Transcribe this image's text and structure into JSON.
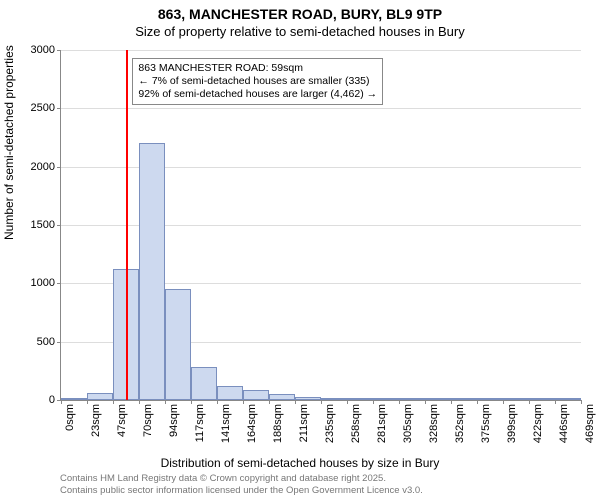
{
  "title_main": "863, MANCHESTER ROAD, BURY, BL9 9TP",
  "title_sub": "Size of property relative to semi-detached houses in Bury",
  "y_axis_label": "Number of semi-detached properties",
  "x_axis_label": "Distribution of semi-detached houses by size in Bury",
  "attribution_1": "Contains HM Land Registry data © Crown copyright and database right 2025.",
  "attribution_2": "Contains public sector information licensed under the Open Government Licence v3.0.",
  "chart": {
    "type": "histogram",
    "ylim": [
      0,
      3000
    ],
    "ytick_step": 500,
    "y_ticks": [
      0,
      500,
      1000,
      1500,
      2000,
      2500,
      3000
    ],
    "x_tick_labels": [
      "0sqm",
      "23sqm",
      "47sqm",
      "70sqm",
      "94sqm",
      "117sqm",
      "141sqm",
      "164sqm",
      "188sqm",
      "211sqm",
      "235sqm",
      "258sqm",
      "281sqm",
      "305sqm",
      "328sqm",
      "352sqm",
      "375sqm",
      "399sqm",
      "422sqm",
      "446sqm",
      "469sqm"
    ],
    "bin_edges_sqm": [
      0,
      23,
      47,
      70,
      94,
      117,
      141,
      164,
      188,
      211,
      235,
      258,
      281,
      305,
      328,
      352,
      375,
      399,
      422,
      446,
      469
    ],
    "bin_values": [
      0,
      60,
      1120,
      2200,
      950,
      280,
      120,
      90,
      50,
      30,
      20,
      10,
      10,
      5,
      2,
      2,
      2,
      2,
      1,
      1
    ],
    "bar_fill": "#cdd9ef",
    "bar_border": "#7a8fbe",
    "grid_color": "#dddddd",
    "axis_color": "#888888",
    "background_color": "#ffffff",
    "reference_line": {
      "value_sqm": 59,
      "color": "#ff0000",
      "width": 2
    },
    "annotation": {
      "line1": "863 MANCHESTER ROAD: 59sqm",
      "line2": "← 7% of semi-detached houses are smaller (335)",
      "line3": "92% of semi-detached houses are larger (4,462) →",
      "border_color": "#888888",
      "background": "#ffffff",
      "fontsize": 10.5
    },
    "title_fontsize": 14,
    "subtitle_fontsize": 13,
    "axis_label_fontsize": 12,
    "tick_label_fontsize": 11
  }
}
